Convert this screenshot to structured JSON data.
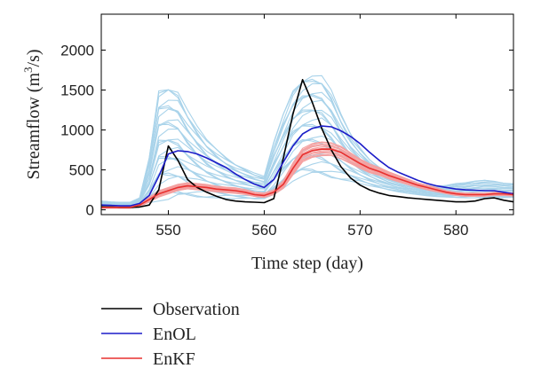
{
  "chart_data": {
    "type": "line",
    "xlabel": "Time step (day)",
    "ylabel": "Streamflow (m³/s)",
    "ylabel_parts": {
      "main": "Streamflow (m",
      "sup": "3",
      "tail": "/s)"
    },
    "xlim": [
      543,
      586
    ],
    "ylim": [
      -60,
      2450
    ],
    "xticks": [
      550,
      560,
      570,
      580
    ],
    "yticks": [
      0,
      500,
      1000,
      1500,
      2000
    ],
    "grid": false,
    "legend_position": "below-left",
    "legend": [
      {
        "name": "Observation",
        "color": "#000000"
      },
      {
        "name": "EnOL",
        "color": "#1c1cc8"
      },
      {
        "name": "EnKF",
        "color": "#e8302f"
      }
    ],
    "colors": {
      "ensemble_openloop": "#a9d3ea",
      "ensemble_enkf": "#f4a0a0",
      "observation": "#000000",
      "enol": "#1c1cc8",
      "enkf": "#e8302f"
    },
    "x": [
      543,
      544,
      545,
      546,
      547,
      548,
      549,
      550,
      551,
      552,
      553,
      554,
      555,
      556,
      557,
      558,
      559,
      560,
      561,
      562,
      563,
      564,
      565,
      566,
      567,
      568,
      569,
      570,
      571,
      572,
      573,
      574,
      575,
      576,
      577,
      578,
      579,
      580,
      581,
      582,
      583,
      584,
      585,
      586
    ],
    "series": [
      {
        "name": "Observation",
        "values": [
          40,
          35,
          30,
          30,
          35,
          60,
          250,
          800,
          620,
          380,
          280,
          220,
          170,
          130,
          110,
          100,
          95,
          90,
          140,
          650,
          1200,
          1630,
          1350,
          1020,
          750,
          540,
          400,
          310,
          250,
          210,
          180,
          165,
          150,
          140,
          130,
          120,
          110,
          100,
          100,
          110,
          140,
          150,
          120,
          100
        ]
      },
      {
        "name": "EnOL",
        "values": [
          60,
          55,
          50,
          50,
          80,
          180,
          420,
          700,
          740,
          730,
          700,
          650,
          590,
          530,
          450,
          380,
          320,
          280,
          380,
          600,
          800,
          950,
          1020,
          1050,
          1040,
          990,
          920,
          830,
          720,
          620,
          530,
          470,
          420,
          370,
          330,
          300,
          280,
          260,
          250,
          245,
          240,
          240,
          220,
          200
        ]
      },
      {
        "name": "EnKF",
        "values": [
          30,
          30,
          30,
          30,
          60,
          130,
          200,
          240,
          280,
          300,
          290,
          280,
          260,
          250,
          240,
          220,
          190,
          180,
          220,
          320,
          520,
          690,
          740,
          760,
          760,
          720,
          650,
          580,
          520,
          480,
          430,
          390,
          350,
          310,
          280,
          250,
          220,
          200,
          190,
          190,
          190,
          200,
          200,
          190
        ]
      }
    ],
    "ensemble_bands": [
      {
        "name": "Open-loop ensemble",
        "lower": [
          70,
          65,
          60,
          60,
          70,
          90,
          110,
          130,
          150,
          160,
          160,
          155,
          150,
          145,
          140,
          135,
          130,
          140,
          190,
          270,
          360,
          420,
          430,
          420,
          400,
          380,
          360,
          330,
          300,
          270,
          245,
          225,
          205,
          190,
          175,
          165,
          155,
          150,
          150,
          150,
          150,
          150,
          150,
          150
        ],
        "upper": [
          110,
          100,
          95,
          95,
          150,
          650,
          1500,
          1560,
          1500,
          1250,
          1050,
          880,
          760,
          660,
          580,
          520,
          460,
          420,
          850,
          1200,
          1500,
          1650,
          1700,
          1680,
          1500,
          1200,
          950,
          780,
          640,
          540,
          460,
          400,
          360,
          330,
          310,
          300,
          310,
          330,
          340,
          360,
          370,
          360,
          340,
          330
        ]
      },
      {
        "name": "EnKF ensemble",
        "lower": [
          20,
          20,
          20,
          20,
          40,
          100,
          160,
          200,
          240,
          260,
          250,
          240,
          225,
          215,
          205,
          190,
          165,
          155,
          190,
          270,
          440,
          600,
          650,
          670,
          680,
          640,
          580,
          520,
          465,
          430,
          385,
          350,
          315,
          280,
          250,
          225,
          200,
          180,
          170,
          170,
          170,
          180,
          180,
          170
        ],
        "upper": [
          40,
          40,
          40,
          40,
          80,
          160,
          240,
          280,
          320,
          340,
          330,
          320,
          300,
          285,
          275,
          255,
          220,
          210,
          250,
          370,
          590,
          770,
          830,
          850,
          840,
          800,
          720,
          640,
          575,
          530,
          475,
          430,
          385,
          340,
          310,
          275,
          240,
          220,
          210,
          210,
          210,
          220,
          220,
          210
        ]
      }
    ]
  }
}
